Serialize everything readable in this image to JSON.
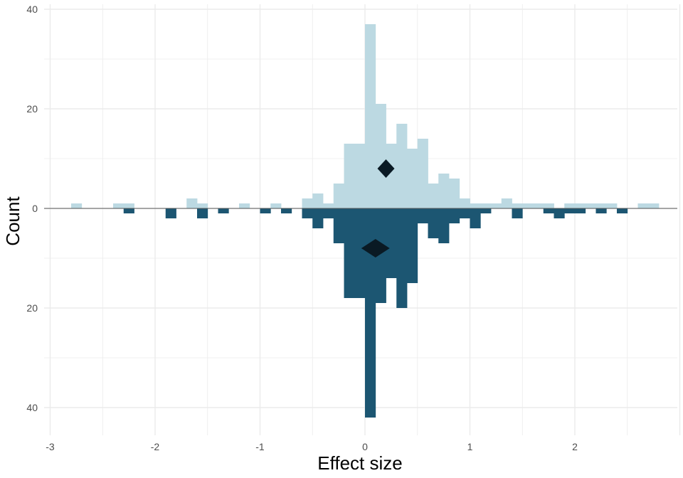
{
  "chart_data": {
    "type": "bar",
    "subtype": "mirrored-histogram",
    "xlabel": "Effect size",
    "ylabel": "Count",
    "xlim": [
      -3,
      3
    ],
    "ylim_upper": [
      0,
      40
    ],
    "ylim_lower": [
      0,
      40
    ],
    "x_ticks": [
      -3,
      -2,
      -1,
      0,
      1,
      2
    ],
    "y_ticks": [
      {
        "value": 40,
        "label": "40"
      },
      {
        "value": 20,
        "label": "20"
      },
      {
        "value": 0,
        "label": "0"
      },
      {
        "value": -20,
        "label": "20"
      },
      {
        "value": -40,
        "label": "40"
      }
    ],
    "bin_width": 0.1,
    "grid": true,
    "legend": "none",
    "series": [
      {
        "direction": "up",
        "color": "#bcd9e2",
        "bins": [
          {
            "x": -2.75,
            "count": 1
          },
          {
            "x": -2.35,
            "count": 1
          },
          {
            "x": -2.25,
            "count": 1
          },
          {
            "x": -1.65,
            "count": 2
          },
          {
            "x": -1.55,
            "count": 1
          },
          {
            "x": -1.15,
            "count": 1
          },
          {
            "x": -0.85,
            "count": 1
          },
          {
            "x": -0.55,
            "count": 2
          },
          {
            "x": -0.45,
            "count": 3
          },
          {
            "x": -0.35,
            "count": 1
          },
          {
            "x": -0.25,
            "count": 5
          },
          {
            "x": -0.15,
            "count": 13
          },
          {
            "x": -0.05,
            "count": 13
          },
          {
            "x": 0.05,
            "count": 37
          },
          {
            "x": 0.15,
            "count": 21
          },
          {
            "x": 0.25,
            "count": 13
          },
          {
            "x": 0.35,
            "count": 17
          },
          {
            "x": 0.45,
            "count": 12
          },
          {
            "x": 0.55,
            "count": 14
          },
          {
            "x": 0.65,
            "count": 5
          },
          {
            "x": 0.75,
            "count": 7
          },
          {
            "x": 0.85,
            "count": 6
          },
          {
            "x": 0.95,
            "count": 2
          },
          {
            "x": 1.05,
            "count": 1
          },
          {
            "x": 1.15,
            "count": 1
          },
          {
            "x": 1.25,
            "count": 1
          },
          {
            "x": 1.35,
            "count": 2
          },
          {
            "x": 1.45,
            "count": 1
          },
          {
            "x": 1.55,
            "count": 1
          },
          {
            "x": 1.65,
            "count": 1
          },
          {
            "x": 1.75,
            "count": 1
          },
          {
            "x": 1.95,
            "count": 1
          },
          {
            "x": 2.05,
            "count": 1
          },
          {
            "x": 2.15,
            "count": 1
          },
          {
            "x": 2.25,
            "count": 1
          },
          {
            "x": 2.35,
            "count": 1
          },
          {
            "x": 2.65,
            "count": 1
          },
          {
            "x": 2.75,
            "count": 1
          }
        ],
        "mean": {
          "x": 0.2,
          "y": 8
        }
      },
      {
        "direction": "down",
        "color": "#1c5672",
        "bins": [
          {
            "x": -2.25,
            "count": 1
          },
          {
            "x": -1.85,
            "count": 2
          },
          {
            "x": -1.55,
            "count": 2
          },
          {
            "x": -1.35,
            "count": 1
          },
          {
            "x": -0.95,
            "count": 1
          },
          {
            "x": -0.75,
            "count": 1
          },
          {
            "x": -0.55,
            "count": 2
          },
          {
            "x": -0.45,
            "count": 4
          },
          {
            "x": -0.35,
            "count": 2
          },
          {
            "x": -0.25,
            "count": 7
          },
          {
            "x": -0.15,
            "count": 18
          },
          {
            "x": -0.05,
            "count": 18
          },
          {
            "x": 0.05,
            "count": 42
          },
          {
            "x": 0.15,
            "count": 19
          },
          {
            "x": 0.25,
            "count": 14
          },
          {
            "x": 0.35,
            "count": 20
          },
          {
            "x": 0.45,
            "count": 15
          },
          {
            "x": 0.55,
            "count": 3
          },
          {
            "x": 0.65,
            "count": 6
          },
          {
            "x": 0.75,
            "count": 7
          },
          {
            "x": 0.85,
            "count": 3
          },
          {
            "x": 0.95,
            "count": 2
          },
          {
            "x": 1.05,
            "count": 4
          },
          {
            "x": 1.15,
            "count": 1
          },
          {
            "x": 1.45,
            "count": 2
          },
          {
            "x": 1.75,
            "count": 1
          },
          {
            "x": 1.85,
            "count": 2
          },
          {
            "x": 1.95,
            "count": 1
          },
          {
            "x": 2.05,
            "count": 1
          },
          {
            "x": 2.25,
            "count": 1
          },
          {
            "x": 2.45,
            "count": 1
          }
        ],
        "mean": {
          "x": 0.1,
          "y": 8
        }
      }
    ],
    "colors": {
      "mean_marker": "#0a1a24",
      "zero_line": "#555555",
      "grid": "#ebebeb"
    }
  }
}
